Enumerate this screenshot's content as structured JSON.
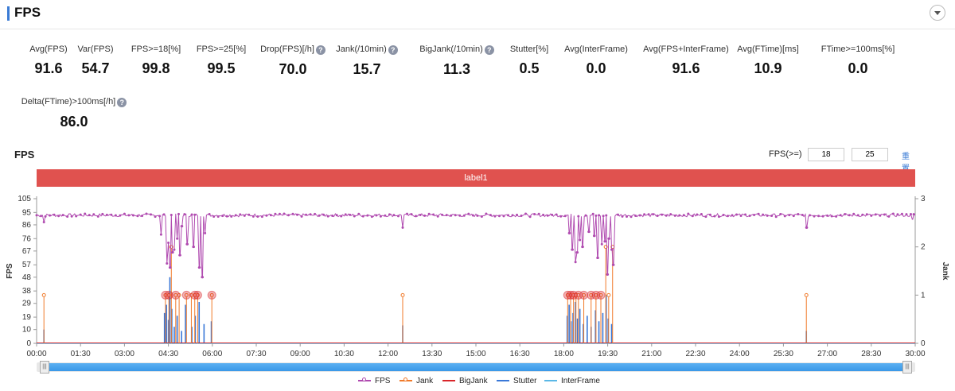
{
  "header": {
    "title": "FPS"
  },
  "metrics": [
    {
      "label": "Avg(FPS)",
      "value": "91.6",
      "help": false
    },
    {
      "label": "Var(FPS)",
      "value": "54.7",
      "help": false
    },
    {
      "label": "FPS>=18[%]",
      "value": "99.8",
      "help": false
    },
    {
      "label": "FPS>=25[%]",
      "value": "99.5",
      "help": false
    },
    {
      "label": "Drop(FPS)[/h]",
      "value": "70.0",
      "help": true
    },
    {
      "label": "Jank(/10min)",
      "value": "15.7",
      "help": true
    },
    {
      "label": "BigJank(/10min)",
      "value": "11.3",
      "help": true
    },
    {
      "label": "Stutter[%]",
      "value": "0.5",
      "help": false
    },
    {
      "label": "Avg(InterFrame)",
      "value": "0.0",
      "help": false
    },
    {
      "label": "Avg(FPS+InterFrame)",
      "value": "91.6",
      "help": false
    },
    {
      "label": "Avg(FTime)[ms]",
      "value": "10.9",
      "help": false
    },
    {
      "label": "FTime>=100ms[%]",
      "value": "0.0",
      "help": false
    },
    {
      "label": "Delta(FTime)>100ms[/h]",
      "value": "86.0",
      "help": true
    }
  ],
  "help_glyph": "?",
  "chart_title": "FPS",
  "filter": {
    "label": "FPS(>=)",
    "value1": "18",
    "value2": "25",
    "reset": "重置"
  },
  "label_bar": "label1",
  "slider": {
    "handle_glyph": "|||"
  },
  "colors": {
    "fps": "#b04bb0",
    "jank": "#f07a2a",
    "bigjank": "#d9262a",
    "stutter": "#3a78d8",
    "interframe": "#5bb8e6",
    "labelbar": "#e0524f"
  },
  "chart_data": {
    "type": "line",
    "xlabel": "",
    "ylabel_left": "FPS",
    "ylabel_right": "Jank",
    "x_range_seconds": [
      0,
      1800
    ],
    "x_tick_labels": [
      "00:00",
      "01:30",
      "03:00",
      "04:30",
      "06:00",
      "07:30",
      "09:00",
      "10:30",
      "12:00",
      "13:30",
      "15:00",
      "16:30",
      "18:00",
      "19:30",
      "21:00",
      "22:30",
      "24:00",
      "25:30",
      "27:00",
      "28:30",
      "30:00"
    ],
    "ylim_left": [
      0,
      105
    ],
    "y_left_ticks": [
      0,
      10,
      19,
      29,
      38,
      48,
      57,
      67,
      76,
      86,
      95,
      105
    ],
    "ylim_right": [
      0,
      3
    ],
    "y_right_ticks": [
      0,
      1,
      2,
      3
    ],
    "series": [
      {
        "name": "FPS",
        "baseline": 93,
        "dips": [
          [
            15,
            88
          ],
          [
            255,
            79
          ],
          [
            267,
            58
          ],
          [
            270,
            73
          ],
          [
            274,
            55
          ],
          [
            278,
            66
          ],
          [
            282,
            68
          ],
          [
            288,
            76
          ],
          [
            293,
            64
          ],
          [
            298,
            85
          ],
          [
            308,
            72
          ],
          [
            322,
            70
          ],
          [
            334,
            55
          ],
          [
            340,
            48
          ],
          [
            345,
            80
          ],
          [
            750,
            84
          ],
          [
            1091,
            80
          ],
          [
            1097,
            68
          ],
          [
            1104,
            59
          ],
          [
            1108,
            66
          ],
          [
            1113,
            75
          ],
          [
            1118,
            70
          ],
          [
            1132,
            81
          ],
          [
            1142,
            78
          ],
          [
            1150,
            62
          ],
          [
            1158,
            72
          ],
          [
            1165,
            74
          ],
          [
            1169,
            50
          ],
          [
            1172,
            76
          ],
          [
            1178,
            68
          ],
          [
            1181,
            57
          ],
          [
            1577,
            84
          ],
          [
            1795,
            90
          ]
        ]
      },
      {
        "name": "Jank",
        "values": [
          [
            15,
            1
          ],
          [
            264,
            1
          ],
          [
            271,
            1
          ],
          [
            276,
            2
          ],
          [
            285,
            1
          ],
          [
            292,
            1
          ],
          [
            307,
            1
          ],
          [
            317,
            1
          ],
          [
            324,
            1
          ],
          [
            330,
            1
          ],
          [
            359,
            1
          ],
          [
            750,
            1
          ],
          [
            1088,
            1
          ],
          [
            1094,
            1
          ],
          [
            1100,
            1
          ],
          [
            1105,
            1
          ],
          [
            1110,
            1
          ],
          [
            1121,
            1
          ],
          [
            1136,
            1
          ],
          [
            1146,
            1
          ],
          [
            1156,
            1
          ],
          [
            1166,
            2
          ],
          [
            1172,
            1
          ],
          [
            1180,
            2
          ],
          [
            1577,
            1
          ]
        ]
      },
      {
        "name": "BigJank",
        "values": [
          [
            264,
            1
          ],
          [
            271,
            1
          ],
          [
            285,
            1
          ],
          [
            307,
            1
          ],
          [
            324,
            1
          ],
          [
            330,
            1
          ],
          [
            359,
            1
          ],
          [
            1088,
            1
          ],
          [
            1094,
            1
          ],
          [
            1100,
            1
          ],
          [
            1110,
            1
          ],
          [
            1121,
            1
          ],
          [
            1136,
            1
          ],
          [
            1146,
            1
          ],
          [
            1156,
            1
          ]
        ]
      },
      {
        "name": "Stutter",
        "values": [
          [
            15,
            10
          ],
          [
            262,
            22
          ],
          [
            266,
            28
          ],
          [
            270,
            17
          ],
          [
            273,
            48
          ],
          [
            277,
            25
          ],
          [
            282,
            12
          ],
          [
            288,
            20
          ],
          [
            297,
            9
          ],
          [
            305,
            28
          ],
          [
            318,
            12
          ],
          [
            325,
            20
          ],
          [
            333,
            30
          ],
          [
            343,
            14
          ],
          [
            358,
            16
          ],
          [
            750,
            13
          ],
          [
            1087,
            20
          ],
          [
            1091,
            28
          ],
          [
            1095,
            16
          ],
          [
            1099,
            22
          ],
          [
            1104,
            30
          ],
          [
            1108,
            18
          ],
          [
            1113,
            25
          ],
          [
            1120,
            14
          ],
          [
            1128,
            20
          ],
          [
            1136,
            12
          ],
          [
            1145,
            24
          ],
          [
            1152,
            16
          ],
          [
            1160,
            22
          ],
          [
            1167,
            35
          ],
          [
            1171,
            18
          ],
          [
            1178,
            14
          ],
          [
            1577,
            9
          ]
        ]
      },
      {
        "name": "InterFrame",
        "values": [
          [
            0,
            0
          ],
          [
            1800,
            0
          ]
        ]
      }
    ]
  }
}
